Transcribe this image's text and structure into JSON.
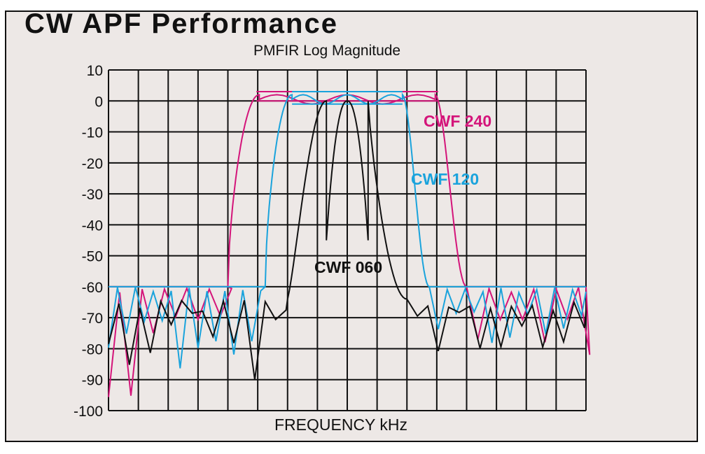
{
  "chart_data": {
    "type": "line",
    "title": "CW APF Performance",
    "subtitle": "PMFIR  Log Magnitude",
    "xlabel": "FREQUENCY  kHz",
    "ylabel": "",
    "ylim": [
      -100,
      10
    ],
    "yticks": [
      "10",
      "0",
      "-10",
      "-20",
      "-30",
      "-40",
      "-50",
      "-60",
      "-70",
      "-80",
      "-90",
      "-100"
    ],
    "grid": true,
    "x_grid_divisions": 16,
    "legend_position": "inline labels",
    "series": [
      {
        "name": "CWF 240",
        "color": "#d4147a",
        "passband_width_cells": 4.0,
        "stopband_level_db": -60,
        "peak_db": 2,
        "min_db": -100
      },
      {
        "name": "CWF 120",
        "color": "#1aa3dc",
        "passband_width_cells": 2.0,
        "stopband_level_db": -60,
        "peak_db": 2,
        "min_db": -95
      },
      {
        "name": "CWF 060",
        "color": "#111111",
        "passband_width_cells": 1.0,
        "stopband_level_db": -64,
        "peak_db": 0,
        "min_db": -100
      }
    ]
  },
  "labels": {
    "cwf240": "CWF 240",
    "cwf120": "CWF 120",
    "cwf060": "CWF 060"
  }
}
